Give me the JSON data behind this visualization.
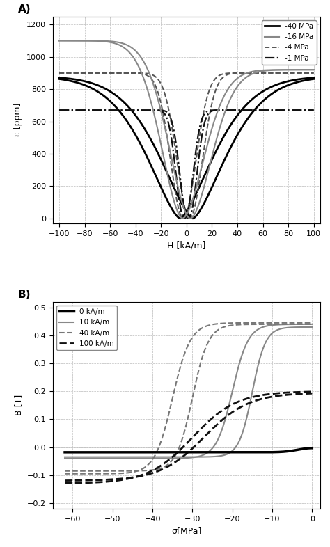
{
  "panel_A": {
    "xlabel": "H [kA/m]",
    "ylabel": "ε [ppm]",
    "xlim": [
      -105,
      105
    ],
    "ylim": [
      -30,
      1250
    ],
    "xticks": [
      -100,
      -80,
      -60,
      -40,
      -20,
      0,
      20,
      40,
      60,
      80,
      100
    ],
    "yticks": [
      0,
      200,
      400,
      600,
      800,
      1000,
      1200
    ]
  },
  "panel_B": {
    "xlabel": "σ[MPa]",
    "ylabel": "B [T]",
    "xlim": [
      -65,
      2
    ],
    "ylim": [
      -0.22,
      0.52
    ],
    "xticks": [
      -60,
      -50,
      -40,
      -30,
      -20,
      -10,
      0
    ],
    "yticks": [
      -0.2,
      -0.1,
      0.0,
      0.1,
      0.2,
      0.3,
      0.4,
      0.5
    ]
  },
  "background_color": "#ffffff",
  "grid_color": "#bbbbbb",
  "grid_linestyle": "--",
  "grid_linewidth": 0.5
}
